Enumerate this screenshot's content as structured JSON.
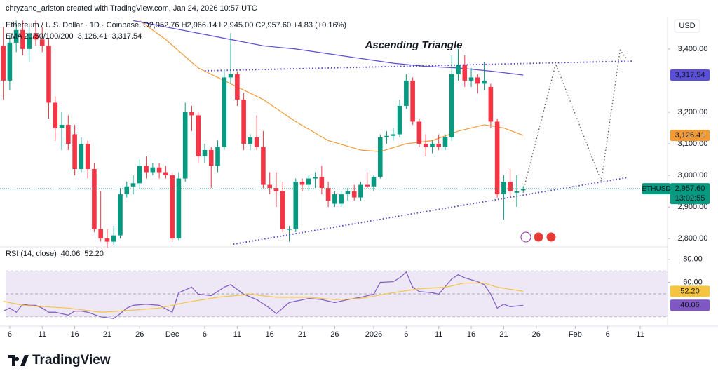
{
  "header": {
    "credit": "chryzano_ariston created with TradingView.com, Jan 24, 2026 10:57 UTC",
    "logo": "TradingView"
  },
  "chart_data": [
    {
      "type": "candlestick",
      "title": "Ethereum / U.S. Dollar · 1D · Coinbase",
      "ohlc_text": "O2,952.76 H2,966.14 L2,945.00 C2,957.60 +4.83 (+0.16%)",
      "indicator": "EMA 20/50/100/200",
      "currency": "USD",
      "symbol": "ETHUSD",
      "last_label": "2,957.60",
      "countdown": "13:02:55",
      "annotation": "Ascending Triangle",
      "up_color": "#089981",
      "down_color": "#f23645",
      "open": [
        3410,
        3300,
        3420,
        3460,
        3400,
        3450,
        3430,
        3410,
        3230,
        3150,
        3160,
        3130,
        3020,
        3100,
        3020,
        2830,
        2800,
        2790,
        2810,
        2940,
        2965,
        2975,
        3030,
        3010,
        3025,
        3010,
        3000,
        2800,
        2990,
        3200,
        3190,
        3060,
        3080,
        3030,
        3090,
        3310,
        3320,
        3240,
        3100,
        3120,
        3090,
        2970,
        2960,
        2950,
        2830,
        2830,
        2980,
        2970,
        2990,
        2995,
        2960,
        2910,
        2910,
        2940,
        2950,
        2930,
        2970,
        2965,
        2995,
        3120,
        3125,
        3130,
        3220,
        3300,
        3170,
        3100,
        3090,
        3100,
        3090,
        3120,
        3320,
        3350,
        3300,
        3310,
        3290,
        3280,
        3170,
        2940,
        2980,
        2945,
        2952.76
      ],
      "high": [
        3470,
        3440,
        3490,
        3490,
        3480,
        3490,
        3470,
        3430,
        3250,
        3200,
        3190,
        3160,
        3120,
        3110,
        3040,
        2950,
        2830,
        2840,
        2960,
        2980,
        3000,
        3050,
        3060,
        3040,
        3040,
        3030,
        3010,
        3010,
        3230,
        3220,
        3200,
        3100,
        3090,
        3110,
        3330,
        3450,
        3330,
        3260,
        3130,
        3190,
        3140,
        3010,
        3010,
        2980,
        2840,
        2990,
        2990,
        3000,
        3010,
        3030,
        2980,
        2950,
        2950,
        2960,
        2970,
        2980,
        3010,
        3000,
        3130,
        3140,
        3150,
        3240,
        3320,
        3310,
        3180,
        3130,
        3110,
        3130,
        3130,
        3380,
        3400,
        3380,
        3340,
        3320,
        3360,
        3290,
        3180,
        3000,
        3020,
        3000,
        2966.14
      ],
      "low": [
        3240,
        3270,
        3390,
        3380,
        3360,
        3410,
        3390,
        3180,
        3110,
        3080,
        3080,
        3000,
        3010,
        2990,
        2820,
        2790,
        2770,
        2780,
        2800,
        2930,
        2940,
        2960,
        2990,
        3000,
        2990,
        2990,
        2790,
        2795,
        2980,
        3140,
        3040,
        3040,
        2960,
        3010,
        3080,
        3290,
        3220,
        3080,
        3080,
        3080,
        2960,
        2940,
        2900,
        2820,
        2790,
        2820,
        2950,
        2950,
        2960,
        2940,
        2900,
        2900,
        2900,
        2920,
        2920,
        2920,
        2960,
        2950,
        2990,
        3100,
        3110,
        3120,
        3210,
        3160,
        3090,
        3060,
        3070,
        3080,
        3080,
        3110,
        3300,
        3280,
        3280,
        3260,
        3270,
        3150,
        2930,
        2860,
        2930,
        2900,
        2945
      ],
      "close": [
        3300,
        3420,
        3460,
        3400,
        3450,
        3430,
        3410,
        3230,
        3150,
        3160,
        3100,
        3020,
        3100,
        3020,
        2830,
        2800,
        2790,
        2810,
        2940,
        2965,
        2975,
        3030,
        3010,
        3025,
        3010,
        3000,
        2800,
        2990,
        3200,
        3190,
        3060,
        3080,
        3030,
        3090,
        3310,
        3320,
        3240,
        3100,
        3120,
        3090,
        2970,
        2960,
        2950,
        2830,
        2830,
        2980,
        2970,
        2990,
        2995,
        2960,
        2920,
        2940,
        2940,
        2950,
        2930,
        2970,
        2965,
        2995,
        3120,
        3125,
        3130,
        3220,
        3300,
        3170,
        3100,
        3090,
        3100,
        3090,
        3120,
        3320,
        3350,
        3300,
        3310,
        3290,
        3300,
        3170,
        2940,
        2980,
        2950,
        2950,
        2957.6
      ],
      "series": [
        {
          "color": "#f09a37",
          "last_label": "3,126.41",
          "x": [
            21,
            25,
            30,
            35,
            40,
            45,
            50,
            55,
            58,
            62,
            66,
            70,
            74,
            77,
            80
          ],
          "values": [
            3490,
            3430,
            3340,
            3290,
            3240,
            3170,
            3110,
            3080,
            3075,
            3100,
            3110,
            3140,
            3160,
            3150,
            3126.41
          ]
        },
        {
          "color": "#5b4fd6",
          "last_label": "3,317.54",
          "x": [
            20,
            25,
            30,
            35,
            40,
            45,
            50,
            55,
            60,
            65,
            70,
            75,
            80
          ],
          "values": [
            3490,
            3470,
            3450,
            3430,
            3410,
            3400,
            3385,
            3370,
            3355,
            3345,
            3340,
            3330,
            3317.54
          ]
        }
      ],
      "drawings": [
        {
          "points": [
            [
              31,
              3331
            ],
            [
              97,
              3362
            ]
          ]
        },
        {
          "points": [
            [
              35.4,
              2782
            ],
            [
              96,
              2993
            ]
          ]
        },
        {
          "points": [
            [
              80,
              2951
            ],
            [
              85,
              3353
            ],
            [
              92,
              2982
            ],
            [
              94.9,
              3396
            ],
            [
              96,
              3367
            ]
          ]
        }
      ],
      "xlim": [
        -0.5,
        102.2
      ],
      "xticks": [
        {
          "value": 1,
          "label": "6"
        },
        {
          "value": 6,
          "label": "11"
        },
        {
          "value": 11,
          "label": "16"
        },
        {
          "value": 16,
          "label": "21"
        },
        {
          "value": 21,
          "label": "26"
        },
        {
          "value": 26,
          "label": "Dec"
        },
        {
          "value": 31,
          "label": "6"
        },
        {
          "value": 36,
          "label": "11"
        },
        {
          "value": 41,
          "label": "16"
        },
        {
          "value": 46,
          "label": "21"
        },
        {
          "value": 51,
          "label": "26"
        },
        {
          "value": 57,
          "label": "2026"
        },
        {
          "value": 62,
          "label": "6"
        },
        {
          "value": 67,
          "label": "11"
        },
        {
          "value": 72,
          "label": "16"
        },
        {
          "value": 77,
          "label": "21"
        },
        {
          "value": 82,
          "label": "26"
        },
        {
          "value": 88,
          "label": "Feb"
        },
        {
          "value": 93,
          "label": "6"
        },
        {
          "value": 98,
          "label": "11"
        }
      ],
      "ylim": [
        2778,
        3493
      ],
      "yticks": [
        {
          "value": 2800,
          "label": "2,800.00"
        },
        {
          "value": 2900,
          "label": "2,900.00"
        },
        {
          "value": 3000,
          "label": "3,000.00"
        },
        {
          "value": 3100,
          "label": "3,100.00"
        },
        {
          "value": 3200,
          "label": "3,200.00"
        },
        {
          "value": 3400,
          "label": "3,400.00"
        }
      ]
    },
    {
      "type": "line",
      "title": "RSI (14, close)",
      "band": [
        30,
        70
      ],
      "midline": 50,
      "band_color": "#ede7f6",
      "series": [
        {
          "color": "#7e57c2",
          "last_label": "40.06",
          "x": [
            0,
            1,
            2,
            3,
            4,
            5,
            6,
            7,
            8,
            10,
            11,
            12,
            13,
            15,
            17,
            18,
            19,
            20,
            22,
            24,
            26,
            27,
            29,
            30,
            32,
            34,
            35,
            37,
            39,
            41,
            42,
            44,
            47,
            49,
            51,
            53,
            55,
            57,
            58,
            60,
            61,
            62,
            63,
            64,
            66,
            67,
            69,
            70,
            71,
            73,
            74,
            75,
            76,
            77,
            78,
            80
          ],
          "values": [
            35,
            37.6,
            34,
            41,
            40,
            40,
            37.6,
            34,
            34,
            31.5,
            35,
            35,
            34,
            30,
            28.5,
            32.7,
            37.6,
            40,
            41,
            40,
            34,
            51,
            55.8,
            49.7,
            48.5,
            55.8,
            58,
            49.7,
            45,
            37.6,
            32.7,
            42.4,
            46,
            45,
            42.4,
            45,
            47,
            49.7,
            60,
            60.6,
            64,
            69,
            55.8,
            52,
            51,
            49.7,
            63,
            66.7,
            64,
            60.6,
            58,
            49.7,
            37.6,
            41,
            38.8,
            40.06
          ]
        },
        {
          "color": "#f5c542",
          "last_label": "52.20",
          "x": [
            0,
            3,
            10,
            15,
            18,
            24,
            28,
            33,
            38,
            42,
            47,
            51,
            55,
            60,
            64,
            68,
            71,
            74,
            76,
            80
          ],
          "values": [
            43.6,
            40,
            37.6,
            34,
            35,
            37.6,
            42.4,
            47,
            49.7,
            47,
            47,
            45,
            46,
            51,
            54.5,
            55.8,
            59.4,
            59.4,
            55.8,
            52.2
          ]
        }
      ],
      "ylim": [
        25,
        89
      ],
      "yticks": [
        {
          "value": 80,
          "label": "80.00"
        },
        {
          "value": 60,
          "label": "60.00"
        }
      ]
    }
  ]
}
